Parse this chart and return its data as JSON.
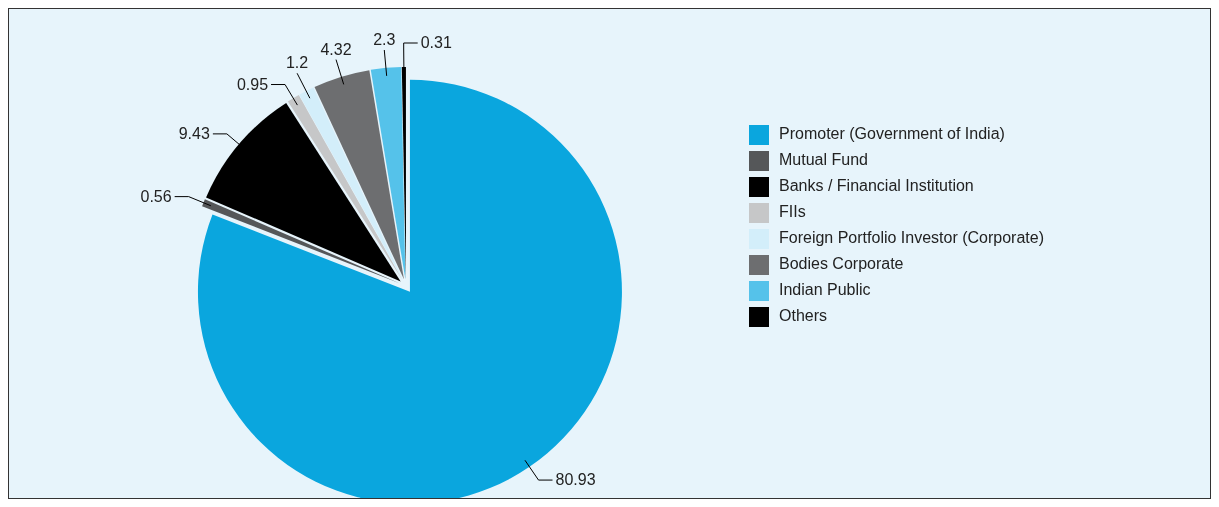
{
  "chart_data": {
    "type": "pie",
    "categories": [
      "Promoter (Government of India)",
      "Mutual Fund",
      "Banks / Financial Institution",
      "FIIs",
      "Foreign Portfolio Investor (Corporate)",
      "Bodies Corporate",
      "Indian Public",
      "Others"
    ],
    "values": [
      80.93,
      0.56,
      9.43,
      0.95,
      1.2,
      4.32,
      2.3,
      0.31
    ],
    "colors": [
      "#0aa6de",
      "#555759",
      "#000000",
      "#c6c7c8",
      "#d3eefa",
      "#6d6e70",
      "#55c2ea",
      "#000000"
    ],
    "data_labels": true,
    "legend": "right"
  }
}
